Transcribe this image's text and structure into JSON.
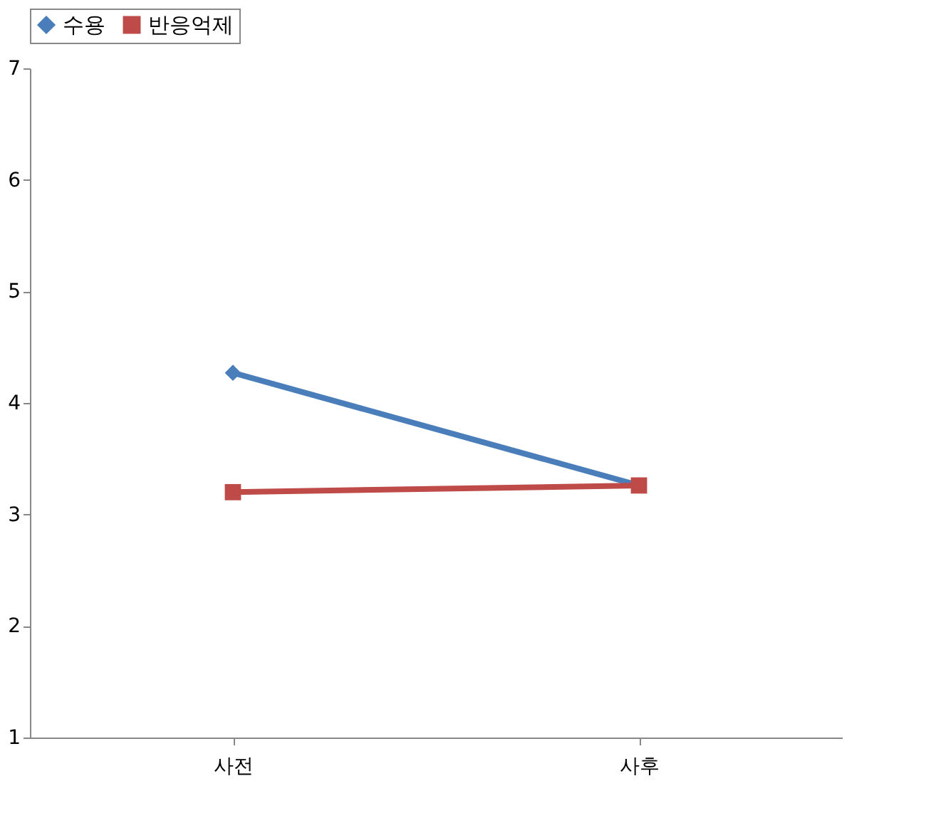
{
  "chart_data": {
    "type": "line",
    "categories": [
      "사전",
      "사후"
    ],
    "series": [
      {
        "name": "수용",
        "color": "#4a7ebb",
        "values": [
          4.27,
          3.26
        ],
        "marker": "diamond"
      },
      {
        "name": "반응억제",
        "color": "#be4b48",
        "values": [
          3.2,
          3.26
        ],
        "marker": "square"
      }
    ],
    "ylim": [
      1,
      7
    ],
    "yticks": [
      1,
      2,
      3,
      4,
      5,
      6,
      7
    ],
    "grid": false,
    "legend": "top",
    "line_style": "solid"
  }
}
